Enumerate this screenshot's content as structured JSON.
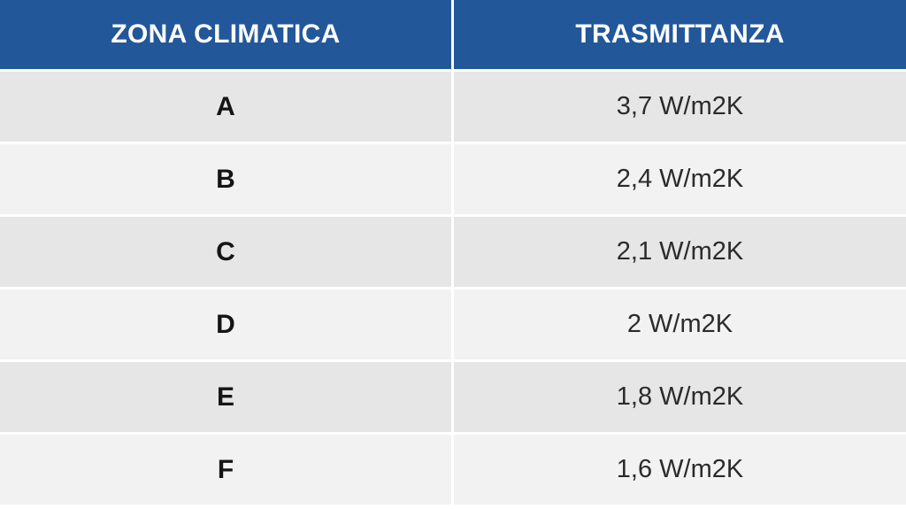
{
  "colors": {
    "header_bg": "#22579a",
    "row_odd_bg": "#e6e6e6",
    "row_even_bg": "#f2f2f2",
    "grid_line": "#ffffff"
  },
  "headers": [
    "ZONA CLIMATICA",
    "TRASMITTANZA"
  ],
  "rows": [
    {
      "zone": "A",
      "value": "3,7 W/m2K"
    },
    {
      "zone": "B",
      "value": "2,4 W/m2K"
    },
    {
      "zone": "C",
      "value": "2,1 W/m2K"
    },
    {
      "zone": "D",
      "value": "2 W/m2K"
    },
    {
      "zone": "E",
      "value": "1,8 W/m2K"
    },
    {
      "zone": "F",
      "value": "1,6 W/m2K"
    }
  ]
}
